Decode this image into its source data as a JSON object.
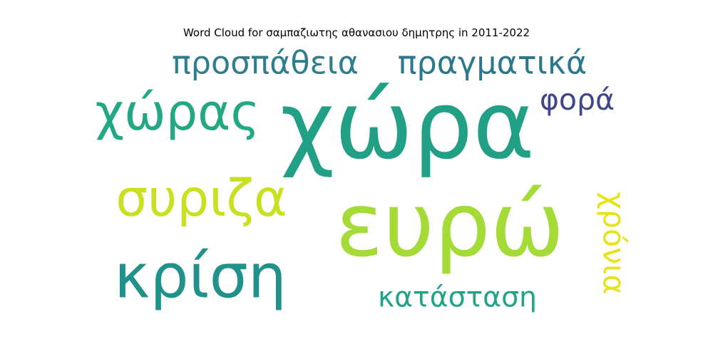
{
  "chart_data": {
    "type": "wordcloud",
    "title": "Word Cloud for σαμπαζιωτης αθανασιου δημητρης in 2011-2022",
    "words": [
      {
        "text": "χώρα",
        "weight": 1.0,
        "color": "#21a085",
        "orientation": "horizontal"
      },
      {
        "text": "ευρώ",
        "weight": 0.92,
        "color": "#a5db36",
        "orientation": "horizontal"
      },
      {
        "text": "κρίση",
        "weight": 0.55,
        "color": "#21918c",
        "orientation": "horizontal"
      },
      {
        "text": "χώρας",
        "weight": 0.45,
        "color": "#22a884",
        "orientation": "horizontal"
      },
      {
        "text": "συριζα",
        "weight": 0.43,
        "color": "#c8e020",
        "orientation": "horizontal"
      },
      {
        "text": "προσπάθεια",
        "weight": 0.33,
        "color": "#2e7e8e",
        "orientation": "horizontal"
      },
      {
        "text": "πραγματικά",
        "weight": 0.33,
        "color": "#2a788e",
        "orientation": "horizontal"
      },
      {
        "text": "φορά",
        "weight": 0.22,
        "color": "#404688",
        "orientation": "horizontal"
      },
      {
        "text": "κατάσταση",
        "weight": 0.22,
        "color": "#20a386",
        "orientation": "horizontal"
      },
      {
        "text": "χρόνια",
        "weight": 0.22,
        "color": "#e5e419",
        "orientation": "vertical"
      }
    ]
  }
}
